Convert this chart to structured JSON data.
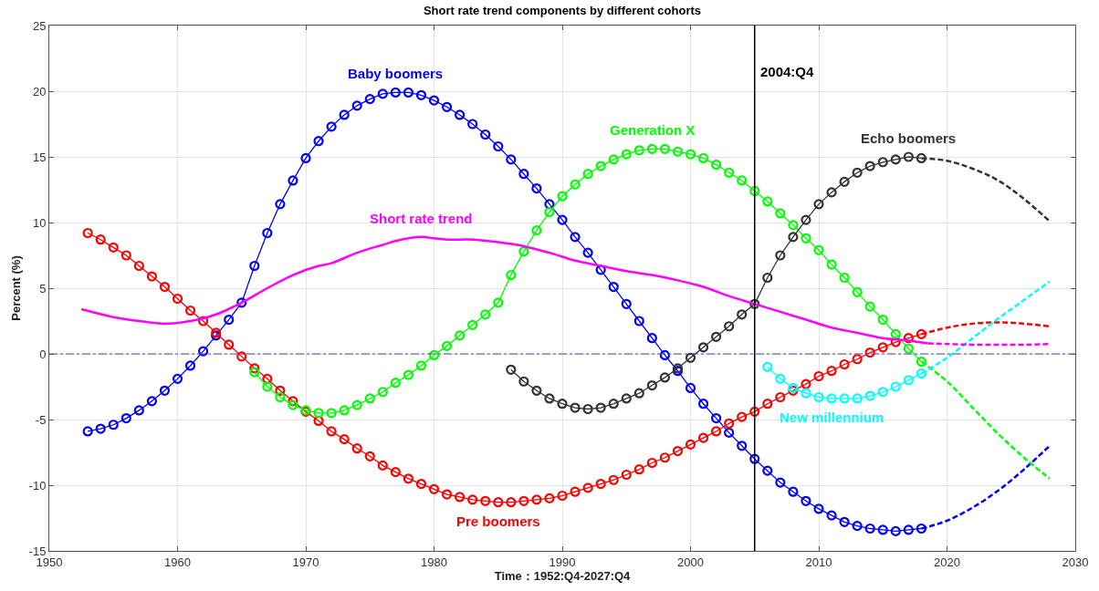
{
  "chart_data": {
    "type": "line",
    "title": "Short rate trend components by different cohorts",
    "xlabel": "Time：1952:Q4-2027:Q4",
    "ylabel": "Percent (%)",
    "xlim": [
      1950,
      2030
    ],
    "xticks": [
      1950,
      1960,
      1970,
      1980,
      1990,
      2000,
      2010,
      2020,
      2030
    ],
    "ylim": [
      -15,
      25
    ],
    "yticks": [
      -15,
      -10,
      -5,
      0,
      5,
      10,
      15,
      20,
      25
    ],
    "grid": true,
    "marker": "circle",
    "line_style": "solid",
    "ref_lines": [
      {
        "axis": "x",
        "value": 2005,
        "label": "2004:Q4",
        "color": "#000000",
        "line_style": "solid"
      },
      {
        "axis": "y",
        "value": 0,
        "color": "#4a4ab0",
        "line_style": "dashdot"
      }
    ],
    "series": [
      {
        "name": "Baby boomers",
        "color": "#0000ff",
        "x": [
          1953,
          1954,
          1955,
          1956,
          1957,
          1958,
          1959,
          1960,
          1961,
          1962,
          1963,
          1964,
          1965,
          1966,
          1967,
          1968,
          1969,
          1970,
          1971,
          1972,
          1973,
          1974,
          1975,
          1976,
          1977,
          1978,
          1979,
          1980,
          1981,
          1982,
          1983,
          1984,
          1985,
          1986,
          1987,
          1988,
          1989,
          1990,
          1991,
          1992,
          1993,
          1994,
          1995,
          1996,
          1997,
          1998,
          1999,
          2000,
          2001,
          2002,
          2003,
          2004,
          2005,
          2006,
          2007,
          2008,
          2009,
          2010,
          2011,
          2012,
          2013,
          2014,
          2015,
          2016,
          2017,
          2018
        ],
        "values": [
          -5.9,
          -5.7,
          -5.4,
          -4.9,
          -4.3,
          -3.6,
          -2.8,
          -1.9,
          -0.9,
          0.2,
          1.4,
          2.6,
          3.9,
          6.7,
          9.2,
          11.4,
          13.2,
          14.9,
          16.2,
          17.3,
          18.2,
          18.9,
          19.4,
          19.8,
          19.9,
          19.9,
          19.7,
          19.3,
          18.8,
          18.2,
          17.5,
          16.7,
          15.8,
          14.8,
          13.7,
          12.6,
          11.4,
          10.2,
          8.9,
          7.7,
          6.4,
          5.1,
          3.8,
          2.5,
          1.2,
          -0.1,
          -1.3,
          -2.6,
          -3.8,
          -4.9,
          -6.0,
          -7.0,
          -8.0,
          -8.9,
          -9.8,
          -10.5,
          -11.2,
          -11.8,
          -12.3,
          -12.8,
          -13.1,
          -13.3,
          -13.4,
          -13.5,
          -13.4,
          -13.3
        ]
      },
      {
        "color": "#0000ff",
        "line_style": "dashed",
        "marker": "none",
        "x": [
          2018,
          2020,
          2022,
          2024,
          2026,
          2028
        ],
        "values": [
          -13.3,
          -12.7,
          -11.7,
          -10.4,
          -8.8,
          -7.0
        ]
      },
      {
        "name": "Pre boomers",
        "color": "#ff0000",
        "x": [
          1953,
          1954,
          1955,
          1956,
          1957,
          1958,
          1959,
          1960,
          1961,
          1962,
          1963,
          1964,
          1965,
          1966,
          1967,
          1968,
          1969,
          1970,
          1971,
          1972,
          1973,
          1974,
          1975,
          1976,
          1977,
          1978,
          1979,
          1980,
          1981,
          1982,
          1983,
          1984,
          1985,
          1986,
          1987,
          1988,
          1989,
          1990,
          1991,
          1992,
          1993,
          1994,
          1995,
          1996,
          1997,
          1998,
          1999,
          2000,
          2001,
          2002,
          2003,
          2004,
          2005,
          2006,
          2007,
          2008,
          2009,
          2010,
          2011,
          2012,
          2013,
          2014,
          2015,
          2016,
          2017,
          2018
        ],
        "values": [
          9.2,
          8.7,
          8.1,
          7.5,
          6.7,
          5.9,
          5.1,
          4.2,
          3.3,
          2.5,
          1.6,
          0.7,
          -0.2,
          -1.1,
          -1.9,
          -2.8,
          -3.6,
          -4.4,
          -5.1,
          -5.9,
          -6.5,
          -7.2,
          -7.8,
          -8.5,
          -9.0,
          -9.5,
          -9.9,
          -10.3,
          -10.7,
          -10.9,
          -11.1,
          -11.2,
          -11.3,
          -11.3,
          -11.2,
          -11.1,
          -11.0,
          -10.8,
          -10.5,
          -10.2,
          -9.9,
          -9.6,
          -9.2,
          -8.8,
          -8.3,
          -7.9,
          -7.4,
          -6.9,
          -6.4,
          -5.9,
          -5.3,
          -4.8,
          -4.4,
          -3.8,
          -3.3,
          -2.8,
          -2.3,
          -1.7,
          -1.3,
          -0.8,
          -0.4,
          0.1,
          0.5,
          0.9,
          1.2,
          1.5
        ]
      },
      {
        "color": "#ff0000",
        "line_style": "dashed",
        "marker": "none",
        "x": [
          2018,
          2020,
          2022,
          2024,
          2026,
          2028
        ],
        "values": [
          1.5,
          2.0,
          2.3,
          2.4,
          2.3,
          2.1
        ]
      },
      {
        "name": "Generation X",
        "color": "#00ff00",
        "x": [
          1966,
          1967,
          1968,
          1969,
          1970,
          1971,
          1972,
          1973,
          1974,
          1975,
          1976,
          1977,
          1978,
          1979,
          1980,
          1981,
          1982,
          1983,
          1984,
          1985,
          1986,
          1987,
          1988,
          1989,
          1990,
          1991,
          1992,
          1993,
          1994,
          1995,
          1996,
          1997,
          1998,
          1999,
          2000,
          2001,
          2002,
          2003,
          2004,
          2005,
          2006,
          2007,
          2008,
          2009,
          2010,
          2011,
          2012,
          2013,
          2014,
          2015,
          2016,
          2017,
          2018
        ],
        "values": [
          -1.4,
          -2.5,
          -3.3,
          -3.9,
          -4.3,
          -4.5,
          -4.5,
          -4.3,
          -3.9,
          -3.4,
          -2.9,
          -2.2,
          -1.6,
          -0.9,
          -0.1,
          0.6,
          1.4,
          2.2,
          3.0,
          3.9,
          6.0,
          7.8,
          9.4,
          10.8,
          12.0,
          12.9,
          13.7,
          14.3,
          14.8,
          15.2,
          15.5,
          15.6,
          15.6,
          15.4,
          15.2,
          14.9,
          14.4,
          13.8,
          13.2,
          12.4,
          11.6,
          10.7,
          9.8,
          8.8,
          7.9,
          6.8,
          5.8,
          4.7,
          3.6,
          2.6,
          1.5,
          0.4,
          -0.6
        ]
      },
      {
        "color": "#00ff00",
        "line_style": "dashed",
        "marker": "none",
        "x": [
          2018,
          2020,
          2022,
          2024,
          2026,
          2028
        ],
        "values": [
          -0.6,
          -2.1,
          -4.1,
          -6.1,
          -7.9,
          -9.5
        ]
      },
      {
        "name": "Echo boomers",
        "color": "#333333",
        "x": [
          1986,
          1987,
          1988,
          1989,
          1990,
          1991,
          1992,
          1993,
          1994,
          1995,
          1996,
          1997,
          1998,
          1999,
          2000,
          2001,
          2002,
          2003,
          2004,
          2005,
          2006,
          2007,
          2008,
          2009,
          2010,
          2011,
          2012,
          2013,
          2014,
          2015,
          2016,
          2017,
          2018
        ],
        "values": [
          -1.2,
          -2.1,
          -2.8,
          -3.4,
          -3.8,
          -4.1,
          -4.2,
          -4.1,
          -3.8,
          -3.4,
          -3.0,
          -2.4,
          -1.8,
          -1.1,
          -0.3,
          0.5,
          1.3,
          2.1,
          3.0,
          3.8,
          5.8,
          7.5,
          8.9,
          10.2,
          11.4,
          12.3,
          13.1,
          13.8,
          14.3,
          14.6,
          14.8,
          15.0,
          14.9
        ]
      },
      {
        "color": "#333333",
        "line_style": "dashed",
        "marker": "none",
        "x": [
          2018,
          2020,
          2022,
          2024,
          2026,
          2028
        ],
        "values": [
          14.9,
          14.7,
          14.1,
          13.2,
          11.8,
          10.1
        ]
      },
      {
        "name": "New millennium",
        "color": "#00ffff",
        "x": [
          2006,
          2007,
          2008,
          2009,
          2010,
          2011,
          2012,
          2013,
          2014,
          2015,
          2016,
          2017,
          2018
        ],
        "values": [
          -1.0,
          -1.9,
          -2.6,
          -3.0,
          -3.3,
          -3.4,
          -3.4,
          -3.4,
          -3.2,
          -2.9,
          -2.5,
          -2.0,
          -1.5
        ]
      },
      {
        "color": "#00ffff",
        "line_style": "dashed",
        "marker": "none",
        "x": [
          2018,
          2020,
          2022,
          2024,
          2026,
          2028
        ],
        "values": [
          -1.5,
          -0.3,
          1.2,
          2.7,
          4.1,
          5.5
        ]
      },
      {
        "name": "Short rate trend",
        "color": "#ff00ff",
        "marker": "none",
        "x": [
          1952.5,
          1955,
          1957,
          1959,
          1961,
          1963,
          1965,
          1967,
          1969,
          1971,
          1972,
          1974,
          1976,
          1977,
          1979,
          1980,
          1981,
          1983,
          1985,
          1987,
          1989,
          1991,
          1993,
          1995,
          1997,
          1999,
          2001,
          2003,
          2005,
          2007,
          2009,
          2011,
          2013,
          2015,
          2017,
          2018.5
        ],
        "values": [
          3.4,
          2.8,
          2.5,
          2.3,
          2.5,
          3.0,
          3.9,
          5.0,
          6.0,
          6.7,
          6.9,
          7.7,
          8.3,
          8.6,
          8.9,
          8.8,
          8.7,
          8.7,
          8.5,
          8.2,
          7.7,
          7.1,
          6.7,
          6.3,
          6.0,
          5.6,
          5.1,
          4.4,
          3.8,
          3.2,
          2.6,
          2.0,
          1.6,
          1.2,
          1.0,
          0.8
        ]
      },
      {
        "color": "#ff00ff",
        "line_style": "dashed",
        "marker": "none",
        "x": [
          2018.5,
          2020,
          2022,
          2024,
          2026,
          2028
        ],
        "values": [
          0.8,
          0.75,
          0.7,
          0.7,
          0.7,
          0.75
        ]
      }
    ]
  }
}
